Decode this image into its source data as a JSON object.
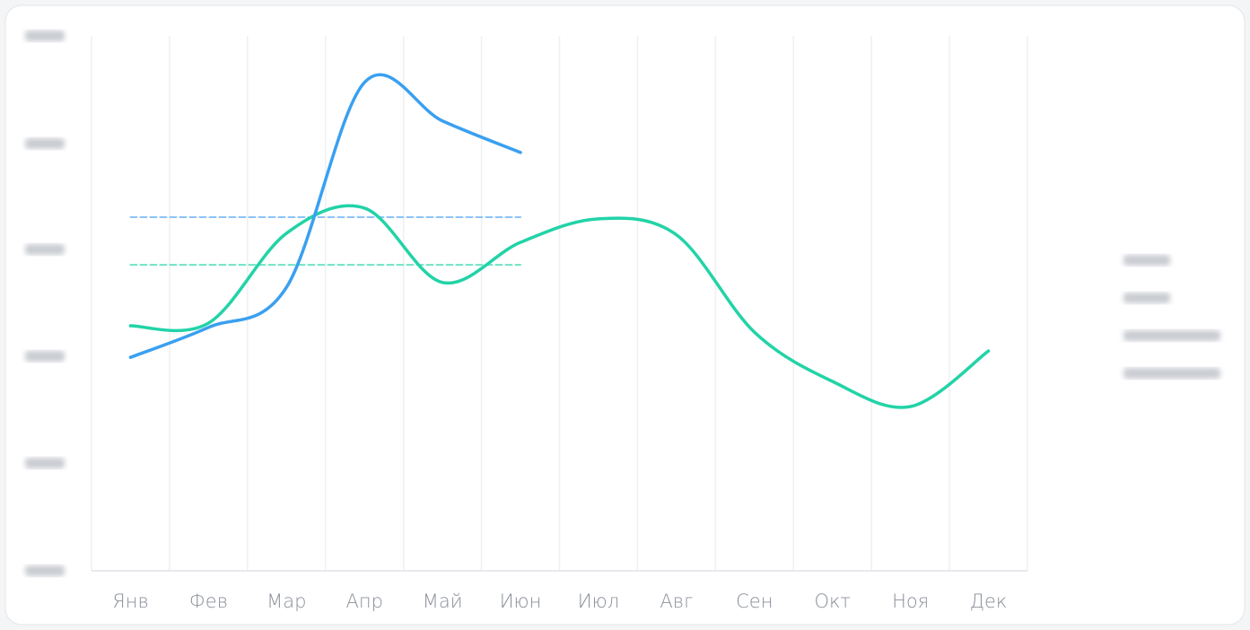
{
  "chart_data": {
    "type": "line",
    "categories": [
      "Янв",
      "Фев",
      "Мар",
      "Апр",
      "Май",
      "Июн",
      "Июл",
      "Авг",
      "Сен",
      "Окт",
      "Ноя",
      "Дек"
    ],
    "ylim": [
      0,
      100
    ],
    "series": [
      {
        "color": "#22d3a7",
        "values": [
          45.8,
          46.3,
          63.1,
          67.8,
          53.9,
          61.4,
          65.8,
          62.8,
          44.6,
          35.4,
          30.7,
          41.1
        ]
      },
      {
        "color": "#3aa0f0",
        "values": [
          39.9,
          45.5,
          53.0,
          91.3,
          84.1,
          78.2,
          null,
          null,
          null,
          null,
          null,
          null
        ]
      },
      {
        "color": "#6fe3c4",
        "dashed": true,
        "values": [
          57.2,
          57.2,
          57.2,
          57.2,
          57.2,
          57.2,
          null,
          null,
          null,
          null,
          null,
          null
        ]
      },
      {
        "color": "#8cc3f5",
        "dashed": true,
        "values": [
          66.1,
          66.1,
          66.1,
          66.1,
          66.1,
          66.1,
          null,
          null,
          null,
          null,
          null,
          null
        ]
      }
    ]
  }
}
